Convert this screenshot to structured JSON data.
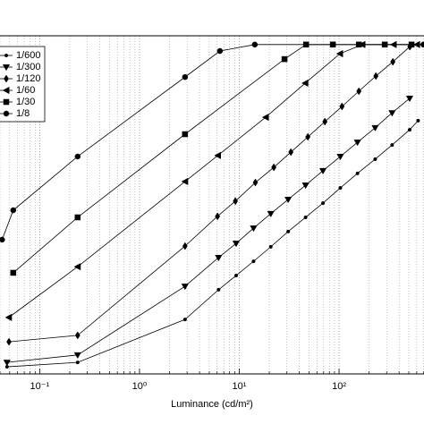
{
  "chart_data": {
    "type": "line",
    "x_label": "Luminance (cd/m²)",
    "xscale": "log",
    "xlim": [
      0.04,
      710
    ],
    "ylim": [
      0,
      100
    ],
    "xticks": [
      {
        "value": 0.1,
        "label": "10⁻¹"
      },
      {
        "value": 1,
        "label": "10⁰"
      },
      {
        "value": 10,
        "label": "10¹"
      },
      {
        "value": 100,
        "label": "10²"
      }
    ],
    "xminorticks": [
      0.04,
      0.05,
      0.06,
      0.07,
      0.08,
      0.09,
      0.2,
      0.3,
      0.4,
      0.5,
      0.6,
      0.7,
      0.8,
      0.9,
      2,
      3,
      4,
      5,
      6,
      7,
      8,
      9,
      20,
      30,
      40,
      50,
      60,
      70,
      80,
      90,
      200,
      300,
      400,
      500,
      600,
      700
    ],
    "grid": true,
    "legend_position": "upper left",
    "series": [
      {
        "name": "1/600",
        "color": "#000000",
        "marker": "dot",
        "x": [
          0.047,
          0.24,
          2.86,
          6.2,
          9.3,
          13.9,
          20.7,
          30.9,
          46.2,
          69,
          103,
          153,
          230,
          340,
          510,
          620
        ],
        "values": [
          2.1,
          3.4,
          16.1,
          24.9,
          29.1,
          33.3,
          37.6,
          42.1,
          46.3,
          50.5,
          55.0,
          59.3,
          63.5,
          67.7,
          72.2,
          74.9
        ]
      },
      {
        "name": "1/300",
        "color": "#000000",
        "marker": "triangle-down",
        "x": [
          0.047,
          0.24,
          2.86,
          6.2,
          9.3,
          13.9,
          20.7,
          30.9,
          46.2,
          69,
          103,
          153,
          230,
          340,
          510
        ],
        "values": [
          3.4,
          5.6,
          25.9,
          34.4,
          38.6,
          43.1,
          47.4,
          51.6,
          55.8,
          60.1,
          64.3,
          68.5,
          72.8,
          77.2,
          81.5
        ]
      },
      {
        "name": "1/120",
        "color": "#000000",
        "marker": "diamond",
        "x": [
          0.0492,
          0.24,
          2.86,
          6.05,
          9.14,
          14.5,
          22.2,
          32.9,
          48.7,
          72.1,
          107,
          158,
          234,
          346,
          513
        ],
        "values": [
          9.5,
          11.4,
          37.8,
          46.6,
          51.1,
          56.6,
          61.1,
          65.6,
          70.1,
          74.6,
          79.1,
          83.6,
          88.1,
          92.3,
          96.8
        ]
      },
      {
        "name": "1/60",
        "color": "#000000",
        "marker": "triangle-left",
        "x": [
          0.049,
          0.24,
          2.86,
          6.1,
          18.4,
          45.8,
          102,
          171,
          352,
          604
        ],
        "values": [
          16.7,
          31.7,
          56.9,
          64.6,
          75.9,
          86.0,
          94.7,
          97.4,
          97.4,
          97.4
        ]
      },
      {
        "name": "1/30",
        "color": "#000000",
        "marker": "square",
        "x": [
          0.0543,
          0.24,
          2.86,
          28.4,
          46.7,
          86.7,
          158,
          287,
          533
        ],
        "values": [
          29.9,
          46.3,
          70.9,
          93.1,
          97.4,
          97.4,
          97.4,
          97.4,
          97.4
        ]
      },
      {
        "name": "1/8",
        "color": "#000000",
        "marker": "circle",
        "x": [
          0.042,
          0.0543,
          0.24,
          2.86,
          6.4,
          14.3,
          700
        ],
        "values": [
          39.7,
          48.4,
          64.3,
          87.8,
          95.5,
          97.4,
          97.4
        ]
      }
    ]
  }
}
